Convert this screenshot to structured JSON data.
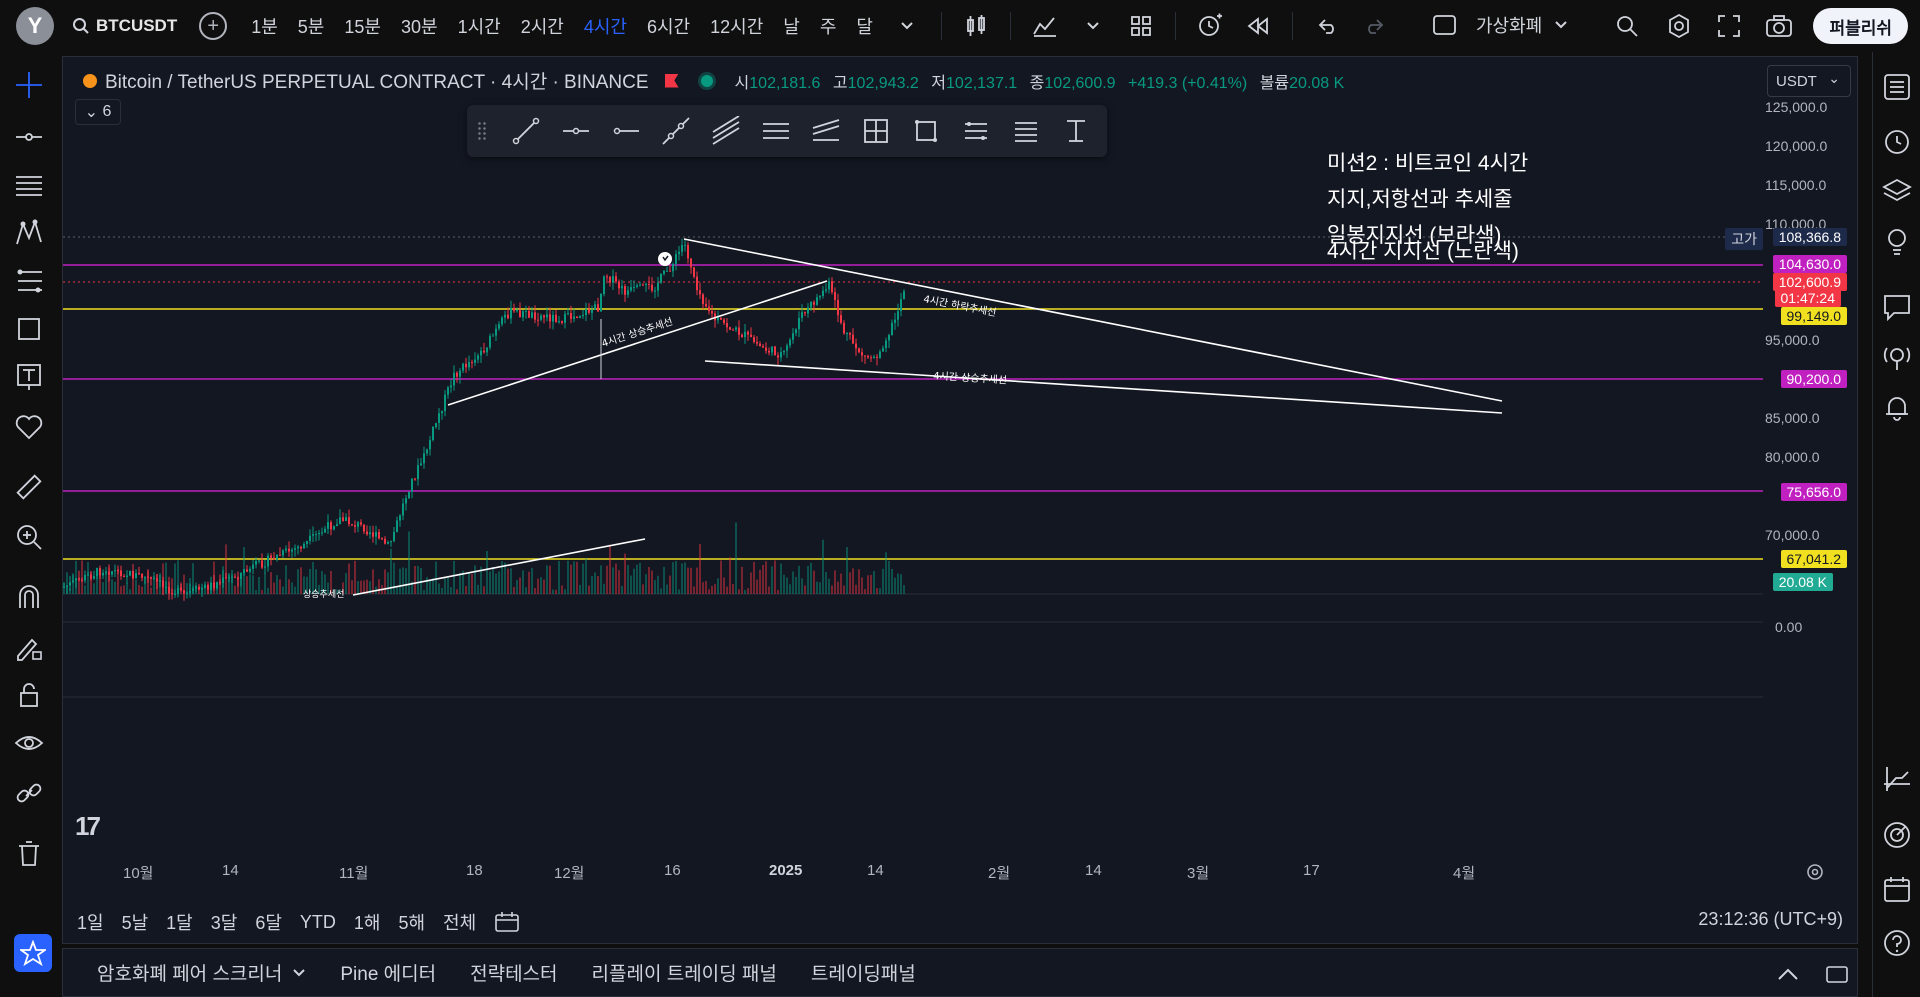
{
  "app": {
    "avatar_letter": "Y",
    "symbol": "BTCUSDT",
    "intervals": [
      "1분",
      "5분",
      "15분",
      "30분",
      "1시간",
      "2시간",
      "4시간",
      "6시간",
      "12시간",
      "날",
      "주",
      "달"
    ],
    "active_interval": "4시간",
    "market_label": "가상화폐",
    "publish_label": "퍼블리쉬"
  },
  "legend": {
    "title": "Bitcoin / TetherUS PERPETUAL CONTRACT · 4시간 · BINANCE",
    "open_label": "시",
    "open": "102,181.6",
    "high_label": "고",
    "high": "102,943.2",
    "low_label": "저",
    "low": "102,137.1",
    "close_label": "종",
    "close": "102,600.9",
    "change": "+419.3 (+0.41%)",
    "volume_label": "볼륨",
    "volume": "20.08 K",
    "indicator_count": "6",
    "currency": "USDT"
  },
  "notes": {
    "line1": "미션2 : 비트코인 4시간",
    "line2": "지지,저항선과 추세줄",
    "line3": "일봉지지선 (보라색)",
    "line4": "4시간 지지선 (노란색)"
  },
  "trend_labels": {
    "up1": "4시간 상승추세선",
    "down": "4시간 하락추세선",
    "up2": "4시간 상승추세선",
    "vol": "상승추세선"
  },
  "price_axis": {
    "ticks": [
      "125,000.0",
      "120,000.0",
      "115,000.0",
      "110,000.0",
      "95,000.0",
      "85,000.0",
      "80,000.0",
      "70,000.0",
      "0.00"
    ],
    "high_tag": "고가",
    "high_value": "108,366.8",
    "levels": {
      "purple_top": "104,630.0",
      "last": "102,600.9",
      "countdown": "01:47:24",
      "yellow_top": "99,149.0",
      "purple_mid": "90,200.0",
      "purple_low": "75,656.0",
      "yellow_low": "67,041.2",
      "volume": "20.08 K"
    }
  },
  "time_axis": {
    "labels": [
      "10월",
      "14",
      "11월",
      "18",
      "12월",
      "16",
      "2025",
      "14",
      "2월",
      "14",
      "3월",
      "17",
      "4월"
    ]
  },
  "range_buttons": [
    "1일",
    "5날",
    "1달",
    "3달",
    "6달",
    "YTD",
    "1해",
    "5해",
    "전체"
  ],
  "clock": "23:12:36 (UTC+9)",
  "bottom_tabs": [
    "암호화폐 페어 스크리너",
    "Pine 에디터",
    "전략테스터",
    "리플레이 트레이딩 패널",
    "트레이딩패널"
  ],
  "colors": {
    "background": "#131722",
    "purple_line": "#c020c0",
    "yellow_line": "#f0e020",
    "up_candle": "#089981",
    "down_candle": "#f23645",
    "accent": "#2962ff"
  }
}
